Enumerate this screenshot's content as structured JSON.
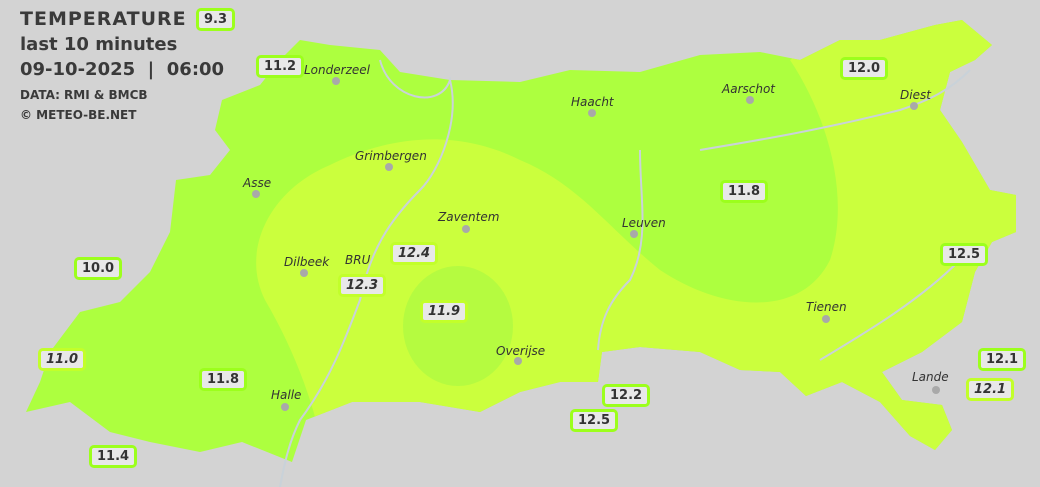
{
  "header": {
    "title": "TEMPERATURE",
    "subtitle": "last 10 minutes",
    "datetime": "09-10-2025  |  06:00",
    "source": "DATA: RMI & BMCB",
    "copyright": "© METEO-BE.NET"
  },
  "colors": {
    "background": "#d3d3d3",
    "zone_green": "#adff3f",
    "zone_yellow": "#cbff3d",
    "label_border": "#9cff1c"
  },
  "cities": [
    {
      "name": "Londerzeel"
    },
    {
      "name": "Haacht"
    },
    {
      "name": "Aarschot"
    },
    {
      "name": "Diest"
    },
    {
      "name": "Grimbergen"
    },
    {
      "name": "Asse"
    },
    {
      "name": "Zaventem"
    },
    {
      "name": "Leuven"
    },
    {
      "name": "Dilbeek"
    },
    {
      "name": "BRU"
    },
    {
      "name": "Tienen"
    },
    {
      "name": "Overijse"
    },
    {
      "name": "Halle"
    },
    {
      "name": "Lande"
    }
  ],
  "readings": [
    {
      "value": "9.3"
    },
    {
      "value": "11.2"
    },
    {
      "value": "12.0"
    },
    {
      "value": "11.8"
    },
    {
      "value": "10.0"
    },
    {
      "value": "12.4"
    },
    {
      "value": "12.3"
    },
    {
      "value": "11.9"
    },
    {
      "value": "12.5"
    },
    {
      "value": "11.0"
    },
    {
      "value": "11.8"
    },
    {
      "value": "12.2"
    },
    {
      "value": "12.5"
    },
    {
      "value": "12.1"
    },
    {
      "value": "12.1"
    },
    {
      "value": "11.4"
    }
  ]
}
